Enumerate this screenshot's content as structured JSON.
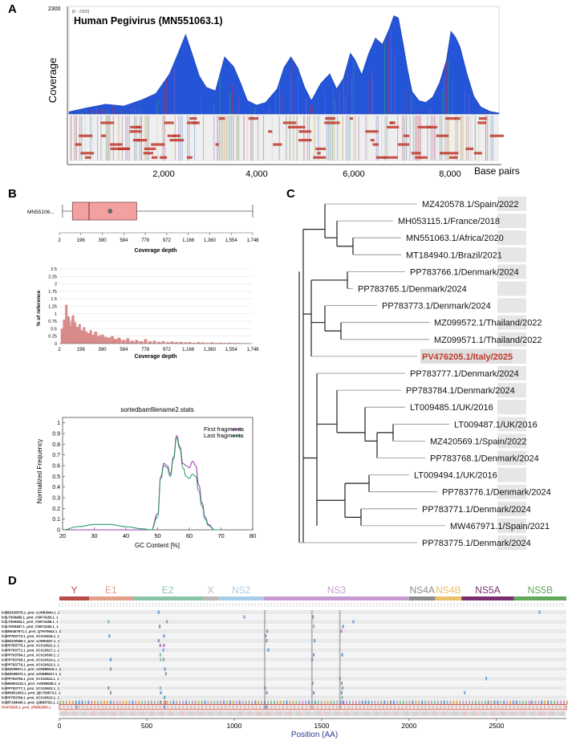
{
  "panels": {
    "A": {
      "letter": "A",
      "title": "Human Pegivirus (MN551063.1)",
      "ylabel": "Coverage",
      "ymax_label": "2300",
      "range_tag": "[0 - 2300]",
      "xlabel": "Base pairs",
      "xticks": [
        "2,000",
        "4,000",
        "6,000",
        "8,000"
      ]
    },
    "B": {
      "letter": "B",
      "box_label": "MN55106...",
      "coverage_ticks": [
        "2",
        "196",
        "390",
        "584",
        "778",
        "972",
        "1,166",
        "1,360",
        "1,554",
        "1,748"
      ],
      "coverage_xlabel": "Coverage depth",
      "hist_ylabel": "% of reference",
      "hist_yticks": [
        "0",
        "0.25",
        "0.5",
        "0.75",
        "1",
        "1.25",
        "1.5",
        "1.75",
        "2",
        "2.25",
        "2.5"
      ],
      "gc_title": "sortedbamfilename2.stats",
      "gc_ylabel": "Normalized Frequency",
      "gc_xlabel": "GC Content [%]",
      "gc_xticks": [
        "20",
        "30",
        "40",
        "50",
        "60",
        "70",
        "80"
      ],
      "gc_yticks": [
        "0",
        "0.1",
        "0.2",
        "0.3",
        "0.4",
        "0.5",
        "0.6",
        "0.7",
        "0.8",
        "0.9",
        "1"
      ],
      "legend": [
        "First fragments",
        "Last fragments"
      ],
      "colors": {
        "box_fill": "#f3a0a0",
        "box_edge": "#7a4a4a",
        "hist": "#d98a8a",
        "first": "#9b3bb0",
        "last": "#2e9e6a"
      }
    },
    "C": {
      "letter": "C",
      "highlight_color": "#c0392b"
    },
    "D": {
      "letter": "D",
      "xlabel": "Position (AA)",
      "xticks": [
        "0",
        "500",
        "1000",
        "1500",
        "2000",
        "2500"
      ]
    }
  },
  "chart_data": [
    {
      "id": "coverage",
      "type": "area",
      "title": "Human Pegivirus (MN551063.1)",
      "xlabel": "Base pairs",
      "ylabel": "Coverage",
      "xlim": [
        0,
        9400
      ],
      "ylim": [
        0,
        2300
      ],
      "x": [
        0,
        400,
        800,
        1200,
        1600,
        1900,
        2200,
        2400,
        2550,
        2700,
        2850,
        3000,
        3200,
        3400,
        3600,
        3750,
        3900,
        4100,
        4300,
        4550,
        4700,
        4850,
        5000,
        5150,
        5300,
        5500,
        5700,
        5850,
        6000,
        6150,
        6250,
        6400,
        6550,
        6700,
        6850,
        7000,
        7100,
        7200,
        7300,
        7400,
        7500,
        7650,
        7800,
        7950,
        8100,
        8250,
        8350,
        8450,
        8550,
        8700,
        8850,
        9000,
        9200,
        9400
      ],
      "values": [
        50,
        140,
        220,
        180,
        320,
        460,
        900,
        1400,
        1780,
        1320,
        850,
        600,
        520,
        1280,
        1060,
        700,
        300,
        200,
        260,
        560,
        1040,
        1280,
        1040,
        600,
        300,
        680,
        900,
        560,
        800,
        1360,
        1220,
        880,
        1350,
        1700,
        1560,
        1900,
        2200,
        2150,
        1600,
        1000,
        500,
        300,
        260,
        380,
        700,
        1200,
        1850,
        1720,
        1500,
        900,
        400,
        160,
        60,
        20
      ],
      "series_colors": [
        "#2454d8",
        "#4a6ff0",
        "#b8324f",
        "#2f9e6a",
        "#8a5cc0"
      ]
    },
    {
      "id": "coverage_box",
      "type": "box",
      "label": "MN55106...",
      "xlabel": "Coverage depth",
      "xlim": [
        2,
        1748
      ],
      "whisker_low": 30,
      "q1": 120,
      "median": 270,
      "mean": 460,
      "q3": 700,
      "whisker_high": 1748
    },
    {
      "id": "coverage_hist",
      "type": "bar",
      "xlabel": "Coverage depth",
      "ylabel": "% of reference",
      "xlim": [
        2,
        1748
      ],
      "ylim": [
        0,
        2.5
      ],
      "x": [
        25,
        45,
        65,
        85,
        105,
        125,
        145,
        165,
        185,
        205,
        225,
        245,
        265,
        285,
        305,
        330,
        360,
        390,
        420,
        450,
        480,
        510,
        540,
        580,
        620,
        660,
        700,
        740,
        780,
        820,
        860,
        900,
        940,
        980,
        1020,
        1060,
        1100,
        1140,
        1180,
        1220,
        1260,
        1300,
        1340,
        1380,
        1420,
        1460,
        1500,
        1540,
        1580,
        1620,
        1660,
        1700
      ],
      "values": [
        0.5,
        0.8,
        1.3,
        0.9,
        0.6,
        0.95,
        0.7,
        0.55,
        0.65,
        0.45,
        0.55,
        0.4,
        0.35,
        0.45,
        0.3,
        0.4,
        0.25,
        0.3,
        0.22,
        0.2,
        0.25,
        0.15,
        0.2,
        0.12,
        0.18,
        0.1,
        0.12,
        0.08,
        0.15,
        0.08,
        0.1,
        0.06,
        0.08,
        0.05,
        0.07,
        0.05,
        0.06,
        0.04,
        0.05,
        0.03,
        0.05,
        0.04,
        0.03,
        0.04,
        0.02,
        0.03,
        0.02,
        0.03,
        0.02,
        0.02,
        0.01,
        0.01
      ]
    },
    {
      "id": "gc_content",
      "type": "line",
      "title": "sortedbamfilename2.stats",
      "xlabel": "GC Content [%]",
      "ylabel": "Normalized Frequency",
      "xlim": [
        20,
        80
      ],
      "ylim": [
        0,
        1.05
      ],
      "series": [
        {
          "name": "First fragments",
          "x": [
            20,
            25,
            30,
            35,
            40,
            45,
            48,
            50,
            51,
            52,
            53,
            54,
            55,
            56,
            57,
            58,
            59,
            60,
            61,
            62,
            63,
            64,
            65,
            66,
            68,
            70
          ],
          "values": [
            0,
            0,
            0,
            0,
            0,
            0,
            0,
            0.15,
            0.5,
            0.62,
            0.6,
            0.52,
            0.68,
            0.88,
            0.78,
            0.62,
            0.6,
            0.58,
            0.64,
            0.6,
            0.42,
            0.25,
            0.12,
            0.05,
            0,
            0
          ]
        },
        {
          "name": "Last fragments",
          "x": [
            20,
            25,
            30,
            35,
            40,
            45,
            48,
            50,
            51,
            52,
            53,
            54,
            55,
            56,
            57,
            58,
            59,
            60,
            61,
            62,
            63,
            64,
            65,
            66,
            68,
            70
          ],
          "values": [
            0,
            0.03,
            0.05,
            0.05,
            0.03,
            0.01,
            0,
            0.12,
            0.48,
            0.6,
            0.58,
            0.5,
            0.66,
            0.86,
            0.76,
            0.58,
            0.5,
            0.48,
            0.52,
            0.5,
            0.36,
            0.22,
            0.1,
            0.04,
            0,
            0
          ]
        }
      ]
    },
    {
      "id": "phylogeny",
      "type": "tree",
      "taxa": [
        "MZ420578.1/Spain/2022",
        "MH053115.1/France/2018",
        "MN551063.1/Africa/2020",
        "MT184940.1/Brazil/2021",
        "PP783766.1/Denmark/2024",
        "PP783765.1/Denmark/2024",
        "PP783773.1/Denmark/2024",
        "MZ099572.1/Thailand/2022",
        "MZ099571.1/Thailand/2022",
        "PV476205.1/Italy/2025",
        "PP783777.1/Denmark/2024",
        "PP783784.1/Denmark/2024",
        "LT009485.1/UK/2016",
        "LT009487.1/UK/2016",
        "MZ420569.1/Spain/2022",
        "PP783768.1/Denmark/2024",
        "LT009494.1/UK/2016",
        "PP783776.1/Denmark/2024",
        "PP783771.1/Denmark/2024",
        "MW467971.1/Spain/2021",
        "PP783775.1/Denmark/2024"
      ],
      "highlight": "PV476205.1/Italy/2025"
    },
    {
      "id": "polyprotein_alignment",
      "type": "heatmap",
      "xlabel": "Position (AA)",
      "xlim": [
        0,
        2900
      ],
      "domains": [
        {
          "name": "Y",
          "start": 0,
          "end": 170,
          "color": "#b84a4a"
        },
        {
          "name": "E1",
          "start": 170,
          "end": 420,
          "color": "#e0a08a"
        },
        {
          "name": "E2",
          "start": 420,
          "end": 820,
          "color": "#8ac4a6"
        },
        {
          "name": "X",
          "start": 820,
          "end": 910,
          "color": "#b8b8b8"
        },
        {
          "name": "NS2",
          "start": 910,
          "end": 1170,
          "color": "#a8cde8"
        },
        {
          "name": "NS3",
          "start": 1170,
          "end": 2000,
          "color": "#c79ad2"
        },
        {
          "name": "NS4A",
          "start": 2000,
          "end": 2150,
          "color": "#8c8c8c"
        },
        {
          "name": "NS4B",
          "start": 2150,
          "end": 2300,
          "color": "#e8c06a"
        },
        {
          "name": "NS5A",
          "start": 2300,
          "end": 2600,
          "color": "#7a2e6e"
        },
        {
          "name": "NS5B",
          "start": 2600,
          "end": 2900,
          "color": "#62a85a"
        }
      ],
      "rows": [
        "lcl|MZ420578.1_prot_UJH93644.1_1",
        "lcl|LT009485.1_prot_CWI74183.1_1",
        "lcl|LT009494.1_prot_CWI74189.1_1",
        "lcl|LT009487.1_prot_CWI74182.1_1",
        "lcl|MW467971.1_prot_QTH79642.1_1",
        "lcl|PP783773.1_prot_XCX10615.1_1",
        "lcl|MZ420569.1_prot_UJH93637.1_1",
        "lcl|PP783775.1_prot_XCX10621.1_1",
        "lcl|PP783771.1_prot_XCX10617.1_1",
        "lcl|PP783784.1_prot_XCX10630.1_1",
        "lcl|PP783768.1_prot_XCX10614.1_1",
        "lcl|PP783776.1_prot_XCX10623.1_1",
        "lcl|MZ099571.1_prot_UOW85616.1_1",
        "lcl|MZ099572.1_prot_UOW85617.1_1",
        "lcl|PP783765.1_prot_XCX10611.1_1",
        "lcl|MH053115.1_prot_AXR98538.1_1",
        "lcl|PP783777.1_prot_XCX10623.1_1",
        "lcl|MN551063.1_prot_QKY59673.1_1",
        "lcl|PP783766.1_prot_XCX10613.1_1",
        "lcl|MT184940.1_prot_QIB05762.1_1",
        "PV476205.1_prot_XRB92593.1"
      ],
      "highlight_row": "PV476205.1_prot_XRB92593.1"
    }
  ]
}
